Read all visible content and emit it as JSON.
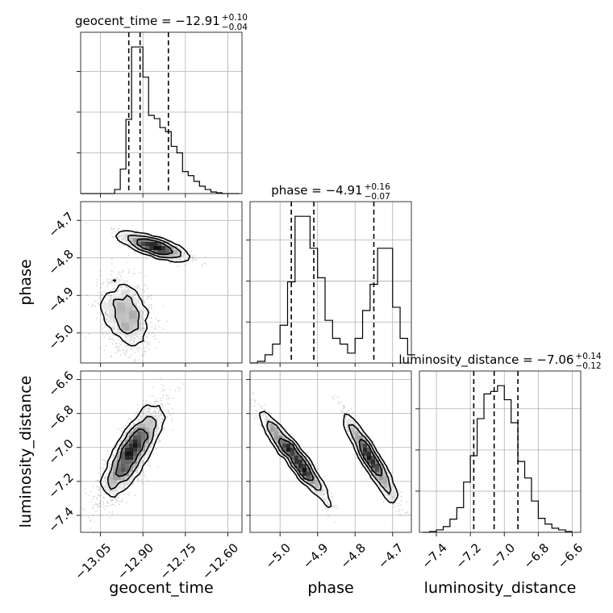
{
  "chart_data": {
    "type": "corner",
    "parameters": [
      {
        "name": "geocent_time",
        "axis_label": "geocent_time",
        "title_main": "geocent_time = −12.91",
        "title_plus": "+0.10",
        "title_minus": "−0.04",
        "range": [
          -13.12,
          -12.55
        ],
        "ticks": [
          -13.05,
          -12.9,
          -12.75,
          -12.6
        ],
        "tick_labels": [
          "−13.05",
          "−12.90",
          "−12.75",
          "−12.60"
        ],
        "quantiles": [
          -12.95,
          -12.91,
          -12.81
        ],
        "hist_edges": [
          -13.12,
          -13.1,
          -13.08,
          -13.06,
          -13.04,
          -13.02,
          -13.0,
          -12.98,
          -12.96,
          -12.94,
          -12.92,
          -12.9,
          -12.88,
          -12.86,
          -12.84,
          -12.82,
          -12.8,
          -12.78,
          -12.76,
          -12.74,
          -12.72,
          -12.7,
          -12.68,
          -12.66,
          -12.64,
          -12.62,
          -12.6,
          -12.58,
          -12.56
        ],
        "hist_counts": [
          0,
          0,
          0,
          0,
          0,
          0,
          5,
          30,
          91,
          180,
          180,
          143,
          96,
          92,
          81,
          76,
          58,
          50,
          27,
          22,
          15,
          9,
          5,
          2,
          1,
          0,
          0,
          0
        ]
      },
      {
        "name": "phase",
        "axis_label": "phase",
        "title_main": "phase = −4.91",
        "title_plus": "+0.16",
        "title_minus": "−0.07",
        "range": [
          -5.08,
          -4.65
        ],
        "ticks": [
          -5.0,
          -4.9,
          -4.8,
          -4.7
        ],
        "tick_labels": [
          "−5.0",
          "−4.9",
          "−4.8",
          "−4.7"
        ],
        "quantiles": [
          -4.97,
          -4.91,
          -4.75
        ],
        "hist_edges": [
          -5.08,
          -5.06,
          -5.04,
          -5.02,
          -5.0,
          -4.98,
          -4.96,
          -4.94,
          -4.92,
          -4.9,
          -4.88,
          -4.86,
          -4.84,
          -4.82,
          -4.8,
          -4.78,
          -4.76,
          -4.74,
          -4.72,
          -4.7,
          -4.68,
          -4.66,
          -4.64
        ],
        "hist_counts": [
          0,
          2,
          10,
          23,
          46,
          99,
          179,
          179,
          140,
          104,
          52,
          30,
          23,
          12,
          30,
          64,
          96,
          140,
          140,
          68,
          30,
          10
        ]
      },
      {
        "name": "luminosity_distance",
        "axis_label": "luminosity_distance",
        "title_main": "luminosity_distance = −7.06",
        "title_plus": "+0.14",
        "title_minus": "−0.12",
        "range": [
          -7.5,
          -6.55
        ],
        "ticks": [
          -7.4,
          -7.2,
          -7.0,
          -6.8,
          -6.6
        ],
        "tick_labels": [
          "−7.4",
          "−7.2",
          "−7.0",
          "−6.8",
          "−6.6"
        ],
        "quantiles": [
          -7.18,
          -7.06,
          -6.92
        ],
        "hist_edges": [
          -7.48,
          -7.44,
          -7.4,
          -7.36,
          -7.32,
          -7.28,
          -7.24,
          -7.2,
          -7.16,
          -7.12,
          -7.08,
          -7.04,
          -7.0,
          -6.96,
          -6.92,
          -6.88,
          -6.84,
          -6.8,
          -6.76,
          -6.72,
          -6.68,
          -6.64,
          -6.6
        ],
        "hist_counts": [
          0,
          1,
          3,
          7,
          16,
          30,
          61,
          93,
          138,
          168,
          171,
          178,
          161,
          133,
          86,
          66,
          38,
          17,
          10,
          5,
          3,
          1
        ]
      }
    ],
    "pairs": [
      {
        "x": "geocent_time",
        "y": "phase",
        "modes": [
          {
            "cx": -12.86,
            "cy": -4.77,
            "sx": 0.06,
            "sy": 0.018,
            "rho": -0.8,
            "n": 900
          },
          {
            "cx": -12.96,
            "cy": -4.95,
            "sx": 0.045,
            "sy": 0.05,
            "rho": -0.25,
            "n": 1100
          }
        ]
      },
      {
        "x": "geocent_time",
        "y": "luminosity_distance",
        "modes": [
          {
            "cx": -12.94,
            "cy": -7.03,
            "sx": 0.055,
            "sy": 0.14,
            "rho": 0.82,
            "n": 2000
          }
        ]
      },
      {
        "x": "phase",
        "y": "luminosity_distance",
        "modes": [
          {
            "cx": -4.96,
            "cy": -7.06,
            "sx": 0.045,
            "sy": 0.13,
            "rho": -0.96,
            "n": 1100
          },
          {
            "cx": -4.76,
            "cy": -7.06,
            "sx": 0.035,
            "sy": 0.13,
            "rho": -0.95,
            "n": 900
          }
        ]
      }
    ],
    "grid": true,
    "quantile_levels": [
      0.16,
      0.5,
      0.84
    ]
  }
}
